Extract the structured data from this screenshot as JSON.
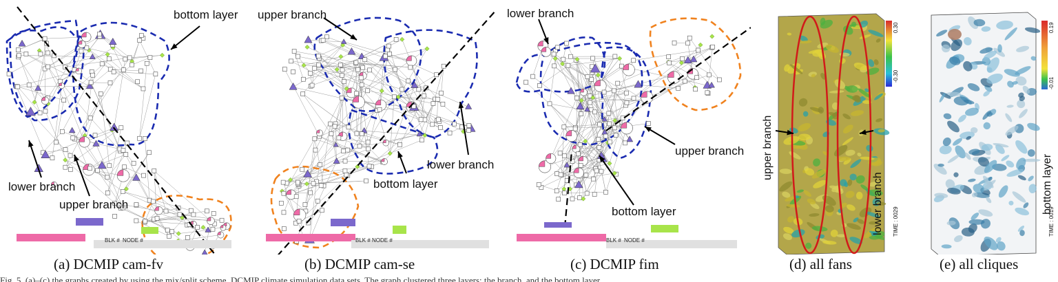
{
  "panels": [
    {
      "caption": "(a) DCMIP cam-fv",
      "annotations": [
        "bottom layer",
        "lower branch",
        "upper branch"
      ],
      "bar_labels": [
        "BLK #",
        "NODE #"
      ]
    },
    {
      "caption": "(b) DCMIP cam-se",
      "annotations": [
        "upper branch",
        "lower branch",
        "bottom layer"
      ],
      "bar_labels": [
        "BLK #",
        "NODE #"
      ]
    },
    {
      "caption": "(c) DCMIP fim",
      "annotations": [
        "lower branch",
        "upper branch",
        "bottom layer"
      ],
      "bar_labels": [
        "BLK #",
        "NODE #"
      ]
    },
    {
      "caption": "(d) all fans",
      "annotations": [
        "upper branch",
        "lower branch"
      ],
      "scale": [
        "0.30",
        "-0.30"
      ],
      "time": "TIME : 0029"
    },
    {
      "caption": "(e) all cliques",
      "annotations": [
        "bottom layer"
      ],
      "scale": [
        "0.19",
        "-0.01"
      ],
      "time": "TIME : 0019"
    }
  ],
  "colors": {
    "fan": "#ee6aa7",
    "clique": "#7b68cc",
    "bridge": "#a8e44a",
    "node": "#ffffff",
    "edge": "#9a9a9a",
    "group_blue": "#1a2bb0",
    "group_orange": "#f0821e",
    "bar_gray": "#e0e0e0",
    "ellipse_red": "#d11a1a"
  },
  "footer_text": "Fig. 5. (a)–(c) the graphs created by using the mix/split scheme. DCMIP climate simulation data sets. The graph clustered three layers: the branch, and the bottom layer."
}
